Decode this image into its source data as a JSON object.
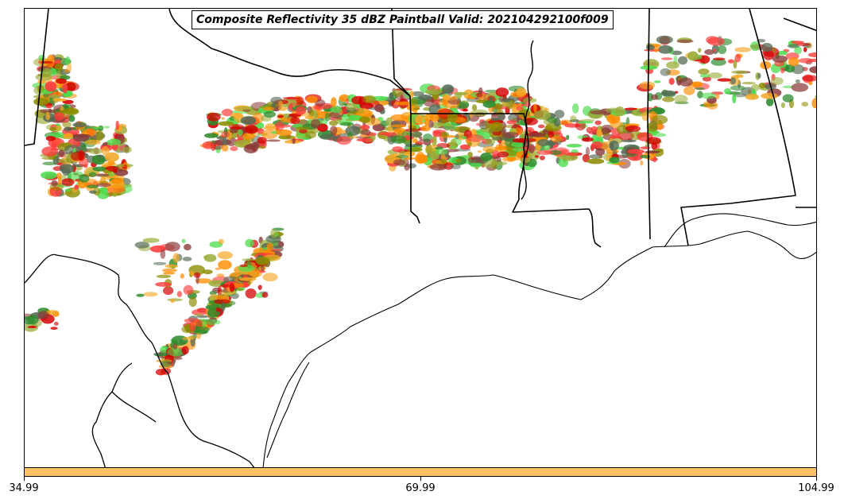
{
  "title": "Composite Reflectivity 35 dBZ Paintball Valid: 202104292100f009",
  "colorbar": {
    "color": "#ffc266",
    "tick_labels": [
      "34.99",
      "69.99",
      "104.99"
    ]
  },
  "paint_colors": [
    "#ff3b3b",
    "#d40000",
    "#ff8c00",
    "#f5a623",
    "#8b8b00",
    "#9aad3a",
    "#2e8b2e",
    "#4ddd4d",
    "#8b3a3a",
    "#556b55"
  ],
  "map_features": [
    "state-borders",
    "coastline",
    "rio-grande",
    "mississippi-river"
  ]
}
